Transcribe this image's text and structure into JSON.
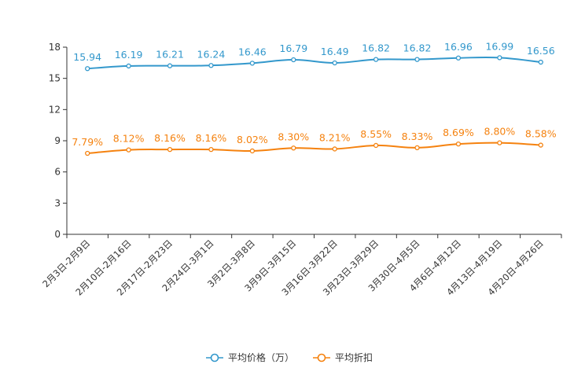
{
  "chart_data": {
    "type": "line",
    "categories": [
      "2月3日-2月9日",
      "2月10日-2月16日",
      "2月17日-2月23日",
      "2月24日-3月1日",
      "3月2日-3月8日",
      "3月9日-3月15日",
      "3月16日-3月22日",
      "3月23日-3月29日",
      "3月30日-4月5日",
      "4月6日-4月12日",
      "4月13日-4月19日",
      "4月20日-4月26日"
    ],
    "series": [
      {
        "name": "平均价格（万）",
        "color": "#3398cc",
        "values": [
          15.94,
          16.19,
          16.21,
          16.24,
          16.46,
          16.79,
          16.49,
          16.82,
          16.82,
          16.96,
          16.99,
          16.56
        ],
        "labels": [
          "15.94",
          "16.19",
          "16.21",
          "16.24",
          "16.46",
          "16.79",
          "16.49",
          "16.82",
          "16.82",
          "16.96",
          "16.99",
          "16.56"
        ]
      },
      {
        "name": "平均折扣",
        "color": "#f5820f",
        "values": [
          7.79,
          8.12,
          8.16,
          8.16,
          8.02,
          8.3,
          8.21,
          8.55,
          8.33,
          8.69,
          8.8,
          8.58
        ],
        "labels": [
          "7.79%",
          "8.12%",
          "8.16%",
          "8.16%",
          "8.02%",
          "8.30%",
          "8.21%",
          "8.55%",
          "8.33%",
          "8.69%",
          "8.80%",
          "8.58%"
        ]
      }
    ],
    "ylim": [
      0,
      18
    ],
    "yticks": [
      0,
      3,
      6,
      9,
      12,
      15,
      18
    ],
    "grid": false,
    "legend": "bottom-center",
    "title": "",
    "xlabel": "",
    "ylabel": ""
  }
}
